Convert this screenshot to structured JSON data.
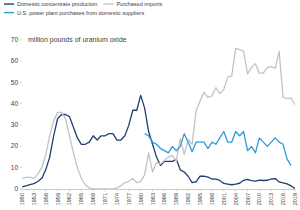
{
  "chart_data": {
    "type": "line",
    "title": "million pounds of uranium oxide",
    "x": [
      1950,
      1951,
      1952,
      1953,
      1954,
      1955,
      1956,
      1957,
      1958,
      1959,
      1960,
      1961,
      1962,
      1963,
      1964,
      1965,
      1966,
      1967,
      1968,
      1969,
      1970,
      1971,
      1972,
      1973,
      1974,
      1975,
      1976,
      1977,
      1978,
      1979,
      1980,
      1981,
      1982,
      1983,
      1984,
      1985,
      1986,
      1987,
      1988,
      1989,
      1990,
      1991,
      1992,
      1993,
      1994,
      1995,
      1996,
      1997,
      1998,
      1999,
      2000,
      2001,
      2002,
      2003,
      2004,
      2005,
      2006,
      2007,
      2008,
      2009,
      2010,
      2011,
      2012,
      2013,
      2014,
      2015,
      2016,
      2017,
      2018,
      2019
    ],
    "series": [
      {
        "name": "Domestic concentrate production",
        "color": "#1f3f6e",
        "values": [
          1,
          1.5,
          2,
          2.5,
          3.5,
          5,
          9,
          15,
          25,
          33,
          35,
          35,
          34,
          29,
          24,
          21,
          21,
          22,
          25,
          23,
          25,
          25,
          26,
          26,
          23,
          23,
          25,
          30,
          37,
          37,
          44,
          38,
          27,
          21,
          15,
          11,
          13,
          13,
          13,
          14,
          9,
          8,
          6,
          3,
          3.4,
          6,
          6,
          5.6,
          4.7,
          4.6,
          4,
          2.6,
          2.3,
          2,
          2.3,
          2.7,
          4.1,
          4.5,
          3.9,
          3.7,
          4.2,
          4,
          4.1,
          4.7,
          4.9,
          3.3,
          2.9,
          2.4,
          1.5,
          0.2
        ]
      },
      {
        "name": "Purchased imports",
        "color": "#c3c3c3",
        "values": [
          5,
          5.5,
          5.5,
          5,
          7,
          10,
          16,
          25,
          32,
          36,
          36,
          33,
          25,
          17,
          10,
          5,
          2,
          0.5,
          0,
          0,
          0,
          0,
          0,
          0,
          0.5,
          1.5,
          3,
          3.5,
          5,
          3,
          3.6,
          6.6,
          17,
          8,
          12.5,
          11.7,
          13.5,
          15,
          15.8,
          13,
          23.7,
          16.3,
          23.3,
          21,
          36.6,
          41.3,
          45.4,
          43,
          43.7,
          47.6,
          44.9,
          46.7,
          52.7,
          53,
          66.1,
          65.5,
          64.8,
          54.1,
          57.1,
          58.9,
          54.4,
          54.4,
          57.2,
          57.5,
          56.7,
          64.6,
          43,
          42.5,
          42.8,
          39.6
        ]
      },
      {
        "name": "U.S. power plant purchases from domestic suppliers",
        "color": "#2f9bd6",
        "values": [
          null,
          null,
          null,
          null,
          null,
          null,
          null,
          null,
          null,
          null,
          null,
          null,
          null,
          null,
          null,
          null,
          null,
          null,
          null,
          null,
          null,
          null,
          null,
          null,
          null,
          null,
          null,
          null,
          null,
          null,
          null,
          26,
          25,
          22,
          21,
          19,
          18,
          17,
          20,
          18,
          20,
          26,
          22,
          17.5,
          22,
          22,
          22,
          19,
          22,
          21,
          24,
          27,
          22,
          22,
          27,
          25,
          27,
          18,
          20,
          17,
          24,
          22,
          20,
          22,
          24,
          22,
          21,
          14,
          11,
          null
        ]
      }
    ],
    "xlim": [
      1950,
      2019
    ],
    "xticks": [
      1950,
      1953,
      1956,
      1959,
      1962,
      1965,
      1968,
      1971,
      1974,
      1977,
      1980,
      1983,
      1986,
      1989,
      1992,
      1995,
      1998,
      2001,
      2004,
      2007,
      2010,
      2013,
      2016,
      2019
    ],
    "ylim": [
      0,
      70
    ],
    "yticks": [
      0,
      10,
      20,
      30,
      40,
      50,
      60,
      70
    ],
    "grid": false,
    "legend": "top"
  }
}
